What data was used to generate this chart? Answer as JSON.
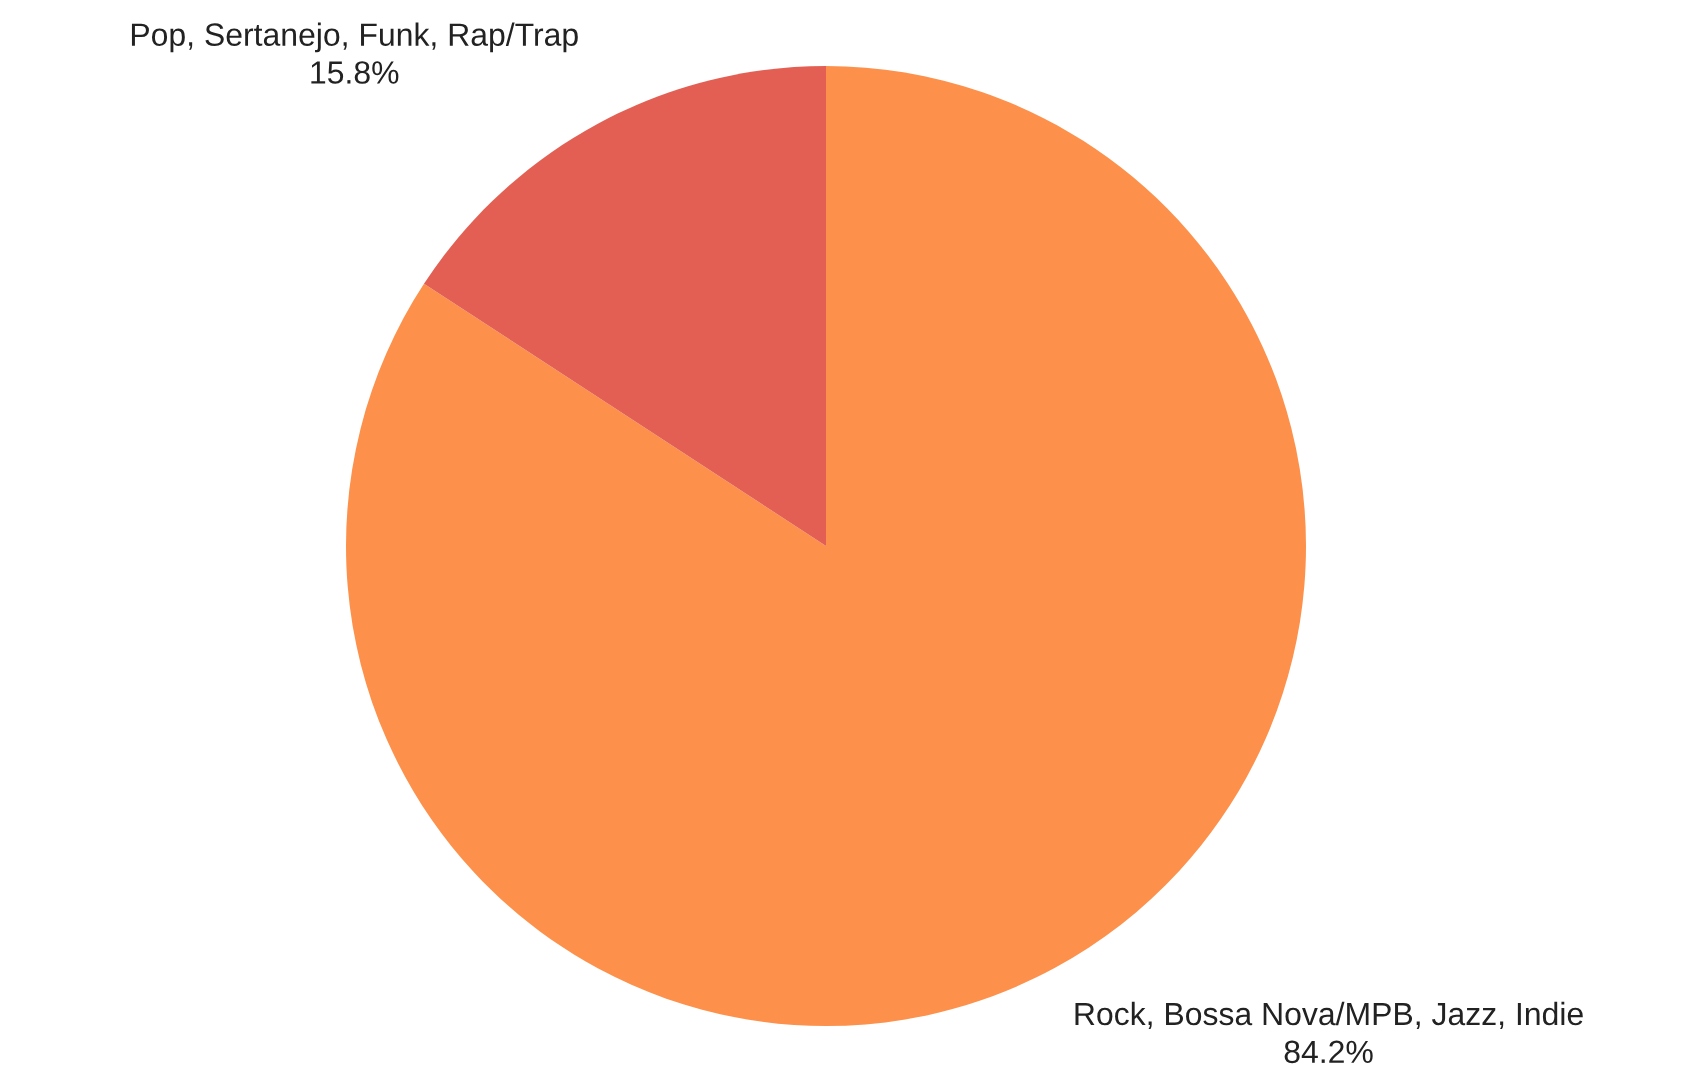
{
  "chart_data": {
    "type": "pie",
    "categories": [
      "Rock, Bossa Nova/MPB, Jazz, Indie",
      "Pop, Sertanejo, Funk, Rap/Trap"
    ],
    "values": [
      84.2,
      15.8
    ],
    "value_labels": [
      "84.2%",
      "15.8%"
    ],
    "colors": [
      "#fd914b",
      "#e35f53"
    ],
    "legend": false
  }
}
